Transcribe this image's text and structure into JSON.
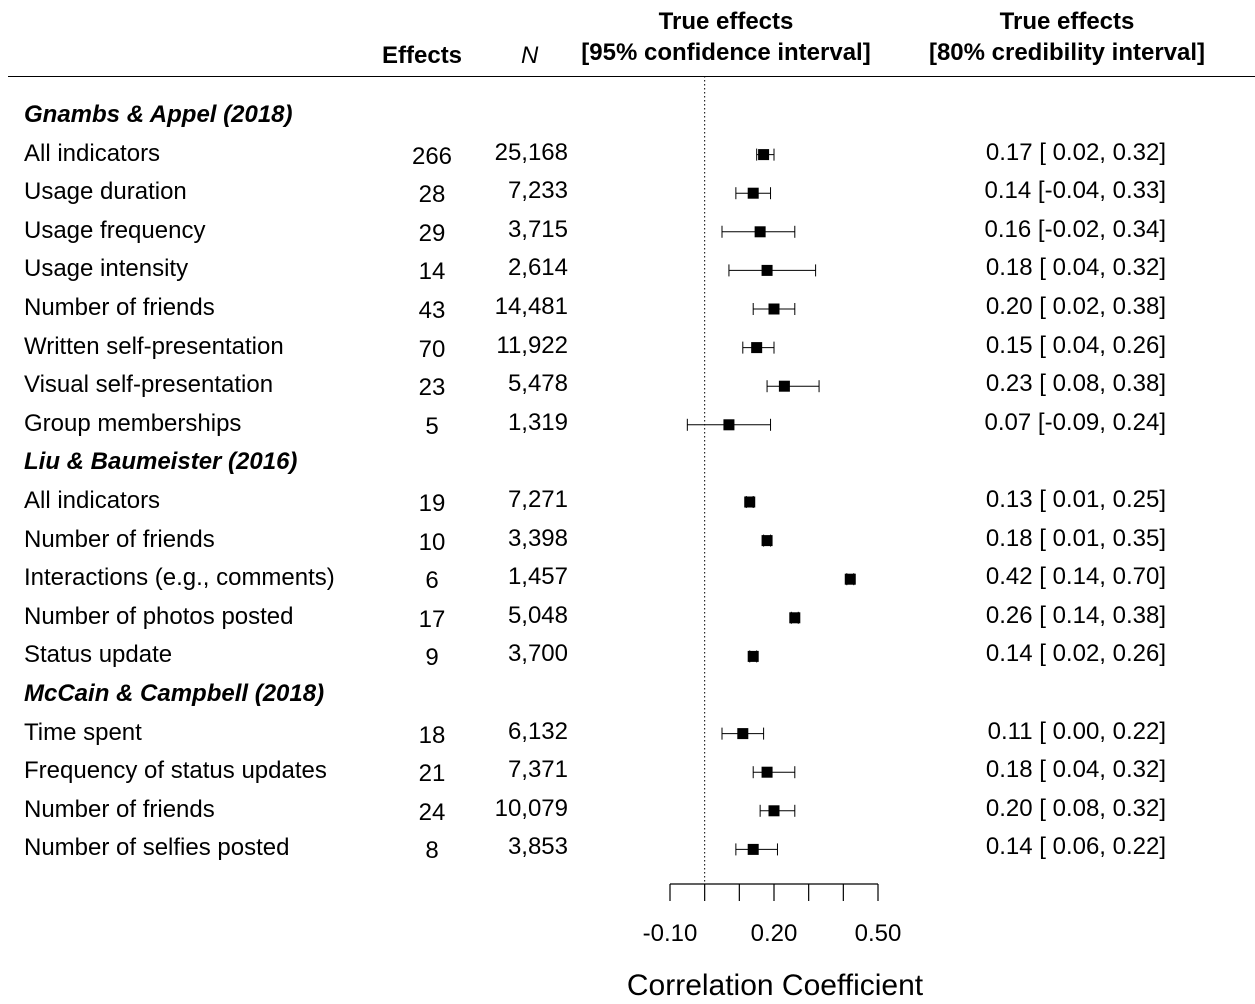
{
  "headers": {
    "effects": "Effects",
    "n": "N",
    "ci_line1": "True effects",
    "ci_line2": "[95% confidence interval]",
    "cr_line1": "True effects",
    "cr_line2": "[80% credibility interval]"
  },
  "rows": [
    {
      "type": "group",
      "label": "Gnambs & Appel (2018)"
    },
    {
      "type": "item",
      "label": "All indicators",
      "k": "266",
      "n": "25,168",
      "est": 0.17,
      "ci": [
        0.15,
        0.2
      ],
      "cr_text": "0.17 [ 0.02, 0.32]"
    },
    {
      "type": "item",
      "label": "Usage duration",
      "k": "28",
      "n": "7,233",
      "est": 0.14,
      "ci": [
        0.09,
        0.19
      ],
      "cr_text": "0.14 [-0.04, 0.33]"
    },
    {
      "type": "item",
      "label": "Usage frequency",
      "k": "29",
      "n": "3,715",
      "est": 0.16,
      "ci": [
        0.05,
        0.26
      ],
      "cr_text": "0.16 [-0.02, 0.34]"
    },
    {
      "type": "item",
      "label": "Usage intensity",
      "k": "14",
      "n": "2,614",
      "est": 0.18,
      "ci": [
        0.07,
        0.32
      ],
      "cr_text": "0.18 [ 0.04, 0.32]"
    },
    {
      "type": "item",
      "label": "Number of friends",
      "k": "43",
      "n": "14,481",
      "est": 0.2,
      "ci": [
        0.14,
        0.26
      ],
      "cr_text": "0.20 [ 0.02, 0.38]"
    },
    {
      "type": "item",
      "label": "Written self-presentation",
      "k": "70",
      "n": "11,922",
      "est": 0.15,
      "ci": [
        0.11,
        0.2
      ],
      "cr_text": "0.15 [ 0.04, 0.26]"
    },
    {
      "type": "item",
      "label": "Visual self-presentation",
      "k": "23",
      "n": "5,478",
      "est": 0.23,
      "ci": [
        0.18,
        0.33
      ],
      "cr_text": "0.23 [ 0.08, 0.38]"
    },
    {
      "type": "item",
      "label": "Group memberships",
      "k": "5",
      "n": "1,319",
      "est": 0.07,
      "ci": [
        -0.05,
        0.19
      ],
      "cr_text": "0.07 [-0.09, 0.24]"
    },
    {
      "type": "group",
      "label": "Liu & Baumeister (2016)"
    },
    {
      "type": "item",
      "label": "All indicators",
      "k": "19",
      "n": "7,271",
      "est": 0.13,
      "ci": [
        0.12,
        0.14
      ],
      "cr_text": "0.13 [ 0.01, 0.25]"
    },
    {
      "type": "item",
      "label": "Number of friends",
      "k": "10",
      "n": "3,398",
      "est": 0.18,
      "ci": [
        0.17,
        0.19
      ],
      "cr_text": "0.18 [ 0.01, 0.35]"
    },
    {
      "type": "item",
      "label": "Interactions (e.g., comments)",
      "k": "6",
      "n": "1,457",
      "est": 0.42,
      "ci": [
        0.41,
        0.43
      ],
      "cr_text": "0.42 [ 0.14, 0.70]"
    },
    {
      "type": "item",
      "label": "Number of photos posted",
      "k": "17",
      "n": "5,048",
      "est": 0.26,
      "ci": [
        0.25,
        0.27
      ],
      "cr_text": "0.26 [ 0.14, 0.38]"
    },
    {
      "type": "item",
      "label": "Status update",
      "k": "9",
      "n": "3,700",
      "est": 0.14,
      "ci": [
        0.13,
        0.15
      ],
      "cr_text": "0.14 [ 0.02, 0.26]"
    },
    {
      "type": "group",
      "label": "McCain & Campbell (2018)"
    },
    {
      "type": "item",
      "label": "Time spent",
      "k": "18",
      "n": "6,132",
      "est": 0.11,
      "ci": [
        0.05,
        0.17
      ],
      "cr_text": "0.11 [ 0.00, 0.22]"
    },
    {
      "type": "item",
      "label": "Frequency of status updates",
      "k": "21",
      "n": "7,371",
      "est": 0.18,
      "ci": [
        0.14,
        0.26
      ],
      "cr_text": "0.18 [ 0.04, 0.32]"
    },
    {
      "type": "item",
      "label": "Number of friends",
      "k": "24",
      "n": "10,079",
      "est": 0.2,
      "ci": [
        0.16,
        0.26
      ],
      "cr_text": "0.20 [ 0.08, 0.32]"
    },
    {
      "type": "item",
      "label": "Number of selfies posted",
      "k": "8",
      "n": "3,853",
      "est": 0.14,
      "ci": [
        0.09,
        0.21
      ],
      "cr_text": "0.14 [ 0.06, 0.22]"
    }
  ],
  "chart_data": {
    "type": "forest",
    "xlabel": "Correlation Coefficient",
    "xlim": [
      -0.1,
      0.5
    ],
    "xticks": [
      -0.1,
      0.0,
      0.1,
      0.2,
      0.3,
      0.4,
      0.5
    ],
    "xtick_labels": [
      "-0.10",
      "",
      "",
      "0.20",
      "",
      "",
      "0.50"
    ],
    "reference_line": 0.0,
    "reference_line_style": "dotted"
  }
}
